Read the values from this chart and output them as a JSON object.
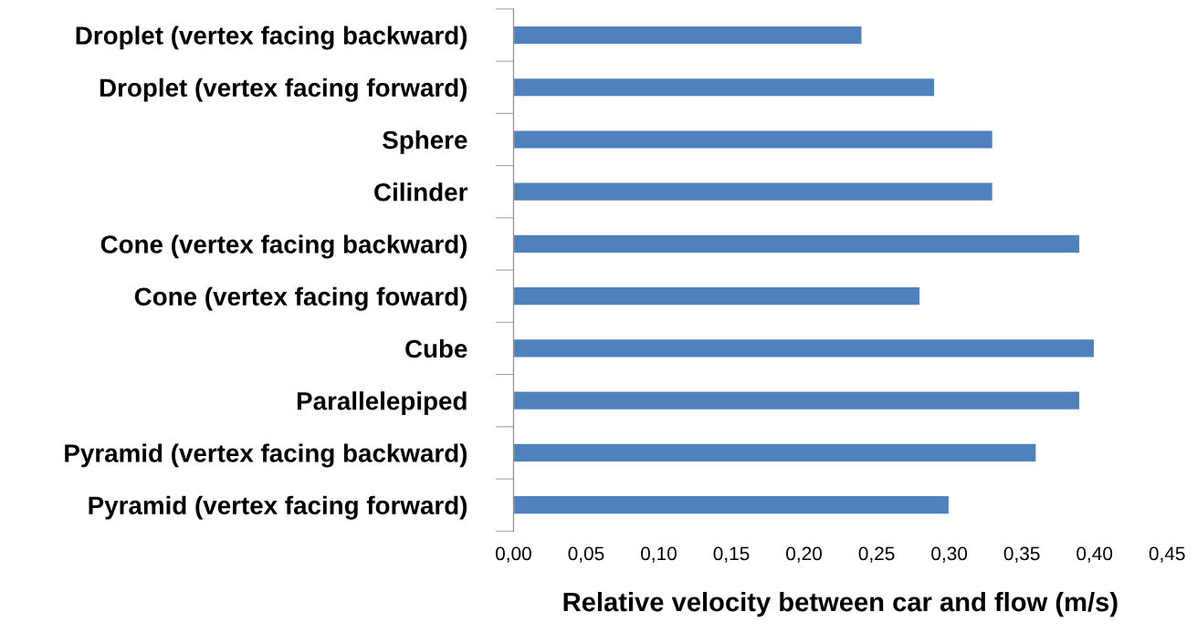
{
  "chart_data": {
    "type": "bar",
    "orientation": "horizontal",
    "xlabel": "Relative velocity between car and flow (m/s)",
    "categories": [
      "Droplet (vertex facing backward)",
      "Droplet (vertex facing forward)",
      "Sphere",
      "Cilinder",
      "Cone (vertex facing backward)",
      "Cone (vertex facing foward)",
      "Cube",
      "Parallelepiped",
      "Pyramid (vertex facing backward)",
      "Pyramid (vertex facing forward)"
    ],
    "values": [
      0.24,
      0.29,
      0.33,
      0.33,
      0.39,
      0.28,
      0.4,
      0.39,
      0.36,
      0.3
    ],
    "color": "#4f81bd",
    "xlim": [
      0,
      0.45
    ],
    "xticks": [
      {
        "value": 0,
        "label": "0,00"
      },
      {
        "value": 0.05,
        "label": "0,05"
      },
      {
        "value": 0.1,
        "label": "0,10"
      },
      {
        "value": 0.15,
        "label": "0,15"
      },
      {
        "value": 0.2,
        "label": "0,20"
      },
      {
        "value": 0.25,
        "label": "0,25"
      },
      {
        "value": 0.3,
        "label": "0,30"
      },
      {
        "value": 0.35,
        "label": "0,35"
      },
      {
        "value": 0.4,
        "label": "0,40"
      },
      {
        "value": 0.45,
        "label": "0,45"
      }
    ],
    "grid": false,
    "legend": false
  }
}
